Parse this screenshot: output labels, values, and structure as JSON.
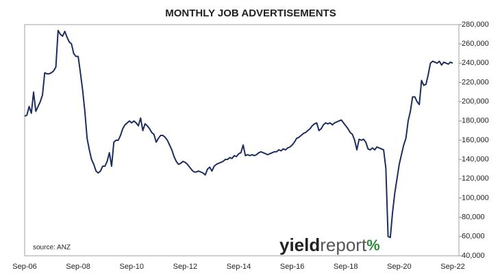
{
  "chart_data": {
    "type": "line",
    "title": "MONTHLY JOB ADVERTISEMENTS",
    "source": "source: ANZ",
    "watermark": {
      "part1": "yield",
      "part2": "report",
      "symbol": "%"
    },
    "categories": [
      "Sep-06",
      null,
      null,
      null,
      null,
      null,
      null,
      null,
      null,
      null,
      null,
      null,
      null,
      null,
      null,
      null,
      null,
      null,
      null,
      null,
      null,
      null,
      null,
      null,
      "Sep-08",
      null,
      null,
      null,
      null,
      null,
      null,
      null,
      null,
      null,
      null,
      null,
      null,
      null,
      null,
      null,
      null,
      null,
      null,
      null,
      null,
      null,
      null,
      null,
      "Sep-10",
      null,
      null,
      null,
      null,
      null,
      null,
      null,
      null,
      null,
      null,
      null,
      null,
      null,
      null,
      null,
      null,
      null,
      null,
      null,
      null,
      null,
      null,
      null,
      "Sep-12",
      null,
      null,
      null,
      null,
      null,
      null,
      null,
      null,
      null,
      null,
      null,
      null,
      null,
      null,
      null,
      null,
      null,
      null,
      null,
      null,
      null,
      null,
      null,
      "Sep-14",
      null,
      null,
      null,
      null,
      null,
      null,
      null,
      null,
      null,
      null,
      null,
      null,
      null,
      null,
      null,
      null,
      null,
      null,
      null,
      null,
      null,
      null,
      null,
      "Sep-16",
      null,
      null,
      null,
      null,
      null,
      null,
      null,
      null,
      null,
      null,
      null,
      null,
      null,
      null,
      null,
      null,
      null,
      null,
      null,
      null,
      null,
      null,
      null,
      "Sep-18",
      null,
      null,
      null,
      null,
      null,
      null,
      null,
      null,
      null,
      null,
      null,
      null,
      null,
      null,
      null,
      null,
      null,
      null,
      null,
      null,
      null,
      null,
      null,
      "Sep-20",
      null,
      null,
      null,
      null,
      null,
      null,
      null,
      null,
      null,
      null,
      null,
      null,
      null,
      null,
      null,
      null,
      null,
      null,
      null,
      null,
      null,
      null,
      null,
      "Sep-22"
    ],
    "series": [
      {
        "color": "#1c2d5e",
        "values": [
          185000,
          186000,
          195000,
          188000,
          210000,
          190000,
          195000,
          200000,
          207000,
          230000,
          229000,
          229000,
          230000,
          232000,
          236000,
          274000,
          270000,
          268000,
          273000,
          267000,
          262000,
          260000,
          250000,
          247000,
          247000,
          230000,
          212000,
          190000,
          162000,
          150000,
          140000,
          135000,
          128000,
          126000,
          128000,
          133000,
          133000,
          138000,
          147000,
          133000,
          158000,
          160000,
          160000,
          165000,
          172000,
          176000,
          178000,
          180000,
          178000,
          180000,
          178000,
          175000,
          183000,
          170000,
          177000,
          175000,
          172000,
          168000,
          166000,
          158000,
          162000,
          165000,
          165000,
          163000,
          160000,
          155000,
          150000,
          143000,
          138000,
          135000,
          136000,
          138000,
          137000,
          135000,
          132000,
          129000,
          127000,
          127000,
          128000,
          127000,
          126000,
          124000,
          130000,
          132000,
          128000,
          133000,
          135000,
          136000,
          137000,
          138000,
          140000,
          140000,
          142000,
          141000,
          144000,
          143000,
          146000,
          147000,
          155000,
          144000,
          145000,
          144000,
          145000,
          144000,
          145000,
          147000,
          148000,
          147000,
          146000,
          145000,
          146000,
          147000,
          148000,
          148000,
          150000,
          149000,
          151000,
          150000,
          152000,
          153000,
          155000,
          158000,
          162000,
          163000,
          165000,
          167000,
          168000,
          170000,
          172000,
          175000,
          177000,
          178000,
          170000,
          172000,
          176000,
          178000,
          177000,
          178000,
          176000,
          178000,
          179000,
          180000,
          181000,
          178000,
          175000,
          172000,
          168000,
          166000,
          160000,
          150000,
          161000,
          160000,
          161000,
          158000,
          151000,
          150000,
          152000,
          150000,
          153000,
          152000,
          151000,
          150000,
          131000,
          60000,
          59000,
          85000,
          105000,
          120000,
          135000,
          145000,
          155000,
          162000,
          180000,
          190000,
          205000,
          205000,
          200000,
          197000,
          222000,
          217000,
          218000,
          228000,
          240000,
          242000,
          241000,
          240000,
          242000,
          238000,
          241000,
          240000,
          239000,
          241000,
          240000
        ]
      }
    ],
    "ylim": [
      40000,
      280000
    ],
    "yticks": [
      {
        "value": 40000,
        "label": "40,000"
      },
      {
        "value": 60000,
        "label": "60,000"
      },
      {
        "value": 80000,
        "label": "80,000"
      },
      {
        "value": 100000,
        "label": "100,000"
      },
      {
        "value": 120000,
        "label": "120,000"
      },
      {
        "value": 140000,
        "label": "140,000"
      },
      {
        "value": 160000,
        "label": "160,000"
      },
      {
        "value": 180000,
        "label": "180,000"
      },
      {
        "value": 200000,
        "label": "200,000"
      },
      {
        "value": 220000,
        "label": "220,000"
      },
      {
        "value": 240000,
        "label": "240,000"
      },
      {
        "value": 260000,
        "label": "260,000"
      },
      {
        "value": 280000,
        "label": "280,000"
      }
    ]
  }
}
